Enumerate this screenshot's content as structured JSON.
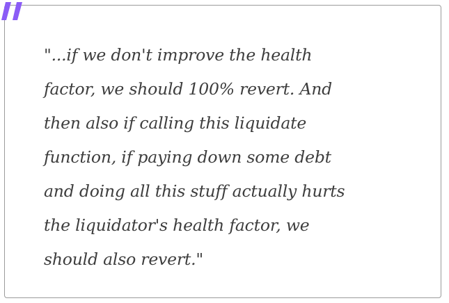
{
  "quote": {
    "lines": [
      "\"...if we don't improve the health",
      "factor, we should 100% revert. And",
      "then also if calling this liquidate",
      "function, if paying down some debt",
      "and doing all this stuff actually hurts",
      "the liquidator's health factor, we",
      "should also revert.\""
    ]
  },
  "colors": {
    "accent": "#8b5cf6",
    "text": "#3d3d3d",
    "border": "#9b9b9b"
  },
  "icons": {
    "quote_mark": "quote-mark-icon"
  }
}
